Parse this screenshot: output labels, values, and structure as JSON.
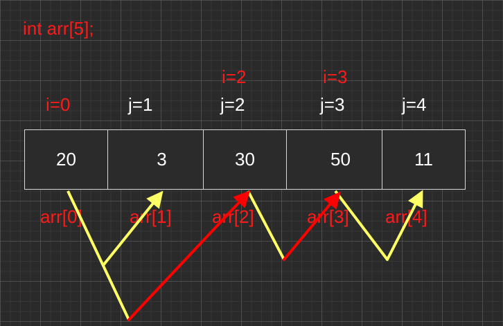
{
  "declaration": "int arr[5];",
  "i_labels": [
    "i=0",
    "i=2",
    "i=3"
  ],
  "j_labels": [
    "j=1",
    "j=2",
    "j=3",
    "j=4"
  ],
  "cells": [
    "20",
    "3",
    "30",
    "50",
    "11"
  ],
  "index_labels": [
    "arr[0]",
    "arr[1]",
    "arr[2]",
    "arr[3]",
    "arr[4]"
  ],
  "colors": {
    "background": "#2a2a2a",
    "red_text": "#ff1a1a",
    "yellow_arrow": "#ffff66",
    "red_arrow": "#ff0000",
    "cell_border": "#d9d9d9"
  }
}
